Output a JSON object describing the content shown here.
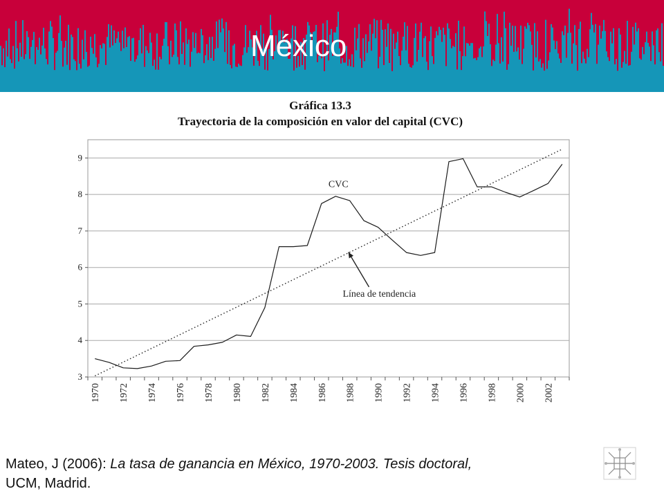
{
  "slide": {
    "title": "México",
    "banner_colors": {
      "top": "#c8003a",
      "bars": "#1596b8"
    }
  },
  "figure": {
    "label": "Gráfica 13.3",
    "title": "Trayectoria de la composición en valor del capital (CVC)"
  },
  "chart_data": {
    "type": "line",
    "x": [
      1970,
      1971,
      1972,
      1973,
      1974,
      1975,
      1976,
      1977,
      1978,
      1979,
      1980,
      1981,
      1982,
      1983,
      1984,
      1985,
      1986,
      1987,
      1988,
      1989,
      1990,
      1991,
      1992,
      1993,
      1994,
      1995,
      1996,
      1997,
      1998,
      1999,
      2000,
      2001,
      2002,
      2003
    ],
    "series": [
      {
        "name": "CVC",
        "style": "solid",
        "values": [
          3.5,
          3.4,
          3.25,
          3.23,
          3.3,
          3.43,
          3.45,
          3.84,
          3.88,
          3.95,
          4.15,
          4.11,
          4.9,
          6.57,
          6.57,
          6.6,
          7.75,
          7.95,
          7.83,
          7.28,
          7.1,
          6.75,
          6.41,
          6.33,
          6.41,
          8.9,
          8.98,
          8.21,
          8.21,
          8.06,
          7.93,
          8.11,
          8.3,
          8.83
        ]
      },
      {
        "name": "Línea de tendencia",
        "style": "dotted",
        "x_start": 1970,
        "y_start": 3.03,
        "x_end": 2003,
        "y_end": 9.24
      }
    ],
    "xticks": [
      1970,
      1972,
      1974,
      1976,
      1978,
      1980,
      1982,
      1984,
      1986,
      1988,
      1990,
      1992,
      1994,
      1996,
      1998,
      2000,
      2002
    ],
    "yticks": [
      3,
      4,
      5,
      6,
      7,
      8,
      9
    ],
    "xlim": [
      1969.5,
      2003.5
    ],
    "ylim": [
      3,
      9.5
    ],
    "grid": "horizontal",
    "xlabel": "",
    "ylabel": "",
    "annotations": [
      {
        "text": "CVC",
        "x": 1987.2,
        "y": 8.2
      },
      {
        "text": "Línea de tendencia",
        "x": 1987.5,
        "y": 5.2,
        "arrow_to_x": 1987.9,
        "arrow_to_y": 6.42
      }
    ]
  },
  "citation": {
    "author": "Mateo, J (2006): ",
    "work": "La tasa de ganancia en México, 1970-2003. Tesis doctoral,",
    "place": "UCM, Madrid."
  }
}
